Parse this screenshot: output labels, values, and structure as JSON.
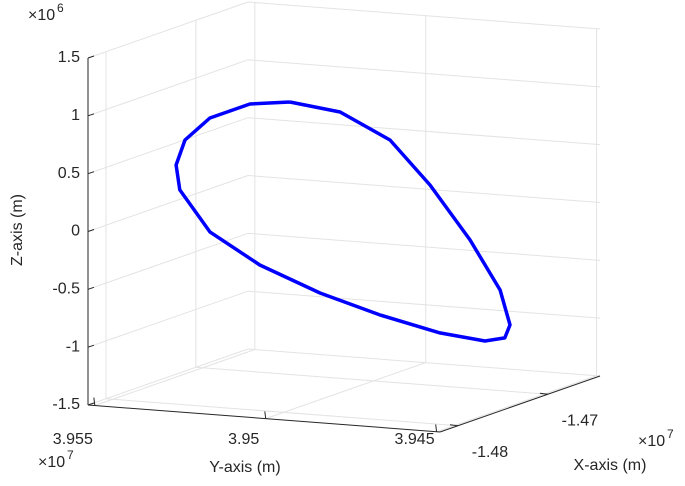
{
  "chart_data": {
    "type": "line3d",
    "xlabel": "X-axis (m)",
    "ylabel": "Y-axis (m)",
    "zlabel": "Z-axis (m)",
    "x_multiplier": {
      "base": "×10",
      "power": "7"
    },
    "y_multiplier": {
      "base": "×10",
      "power": "7"
    },
    "z_multiplier": {
      "base": "×10",
      "power": "6"
    },
    "color": "#0000ff",
    "grid": true,
    "xlim": [
      -14820000,
      -14642000
    ],
    "ylim": [
      39552000,
      39449000
    ],
    "zlim": [
      -1500000,
      1500000
    ],
    "xticks": [
      {
        "value": -14800000,
        "label": "-1.48"
      },
      {
        "value": -14700000,
        "label": "-1.47"
      }
    ],
    "yticks": [
      {
        "value": 39550000,
        "label": "3.955"
      },
      {
        "value": 39500000,
        "label": "3.95"
      },
      {
        "value": 39450000,
        "label": "3.945"
      }
    ],
    "zticks": [
      {
        "value": -1500000,
        "label": "-1.5"
      },
      {
        "value": -1000000,
        "label": "-1"
      },
      {
        "value": -500000,
        "label": "-0.5"
      },
      {
        "value": 0,
        "label": "0"
      },
      {
        "value": 500000,
        "label": "0.5"
      },
      {
        "value": 1000000,
        "label": "1"
      },
      {
        "value": 1500000,
        "label": "1.5"
      }
    ],
    "x": [
      -14730000,
      -14730000,
      -14730000,
      -14730000,
      -14730000,
      -14730000,
      -14730000,
      -14730000,
      -14730000,
      -14730000,
      -14730000,
      -14730000,
      -14730000,
      -14730000,
      -14730000,
      -14730000,
      -14730000,
      -14730000,
      -14730000,
      -14730000
    ],
    "y": [
      39516600,
      39501900,
      39487300,
      39475600,
      39463900,
      39455100,
      39452200,
      39453700,
      39459500,
      39472700,
      39490300,
      39507800,
      39525400,
      39540000,
      39548800,
      39549900,
      39547300,
      39540000,
      39528300,
      39516600
    ],
    "z": [
      955000,
      902000,
      693000,
      330000,
      -118000,
      -531000,
      -826000,
      -942000,
      -982000,
      -942000,
      -826000,
      -676000,
      -474000,
      -221000,
      122000,
      335000,
      557000,
      764000,
      911000,
      955000
    ]
  }
}
